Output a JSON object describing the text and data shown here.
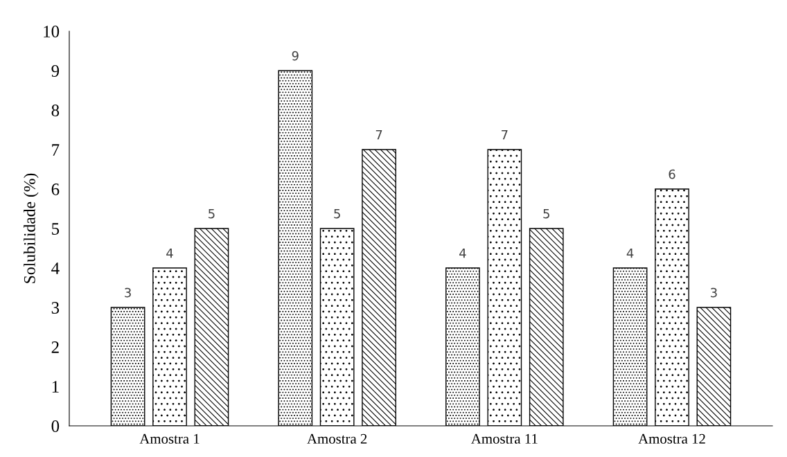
{
  "chart_data": {
    "type": "bar",
    "ylabel": "Solubilidade (%)",
    "categories": [
      "Amostra 1",
      "Amostra 2",
      "Amostra 11",
      "Amostra 12"
    ],
    "series": [
      {
        "color": "#000000",
        "values": [
          3,
          9,
          4,
          4
        ]
      },
      {
        "color": "#000000",
        "values": [
          4,
          5,
          7,
          6
        ]
      },
      {
        "color": "#000000",
        "values": [
          5,
          7,
          5,
          3
        ]
      }
    ],
    "ylim": [
      0,
      10
    ],
    "yticks": [
      0,
      1,
      2,
      3,
      4,
      5,
      6,
      7,
      8,
      9,
      10
    ],
    "grid": false,
    "legend": false,
    "data_labels": true
  }
}
